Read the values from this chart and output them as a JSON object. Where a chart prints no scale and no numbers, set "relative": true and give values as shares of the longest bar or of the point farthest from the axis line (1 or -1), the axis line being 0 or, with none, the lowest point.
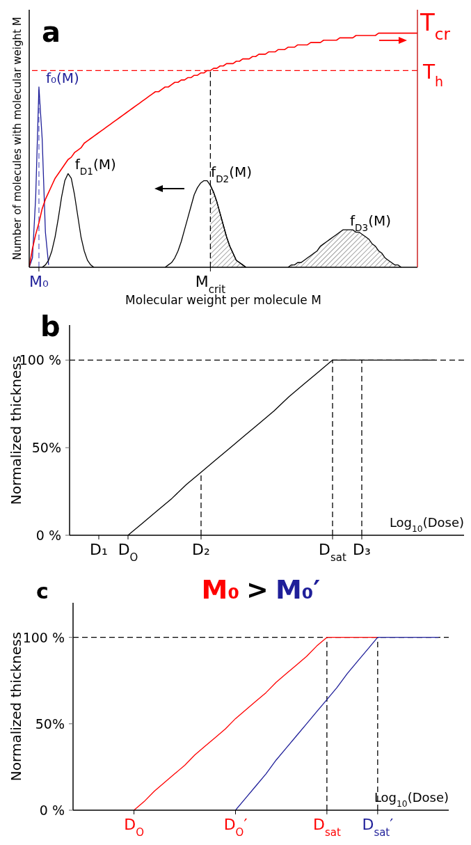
{
  "chart_data": [
    {
      "type": "line",
      "title": "a",
      "xlabel": "Molecular weight per molecule M",
      "ylabel": "Number of molecules with molecular weight M",
      "y2label": "T$_{cr}$",
      "relative": true,
      "legend": false,
      "categories": [
        null,
        null,
        null,
        "M₀",
        null,
        null,
        null,
        null,
        null,
        null,
        null,
        null,
        null,
        null,
        null,
        null,
        null,
        null,
        null,
        null,
        null,
        null,
        null,
        null,
        null,
        null,
        null,
        null,
        null,
        null,
        null,
        null,
        null,
        null,
        null,
        null,
        null,
        null,
        null,
        null,
        null,
        null,
        null,
        null,
        null,
        null,
        null,
        null,
        null,
        null,
        null,
        null,
        null,
        null,
        null,
        null,
        "M$_{crit}$",
        null,
        null,
        null,
        null,
        null,
        null,
        null,
        null,
        null,
        null,
        null,
        null,
        null,
        null,
        null,
        null,
        null,
        null,
        null,
        null,
        null,
        null,
        null,
        null,
        null,
        null,
        null,
        null,
        null,
        null,
        null,
        null,
        null,
        null,
        null,
        null,
        null,
        null,
        null,
        null,
        null,
        null,
        null,
        null,
        null,
        null,
        null,
        null,
        null,
        null,
        null,
        null,
        null,
        null,
        null,
        null,
        null,
        null,
        null,
        null,
        null,
        null,
        null,
        null
      ],
      "series": [
        {
          "name": "f₀(M)",
          "color": "#1f1f99",
          "values": [
            0,
            0.04,
            0.3,
            0.77,
            0.55,
            0.15,
            0.01,
            null,
            null,
            null,
            null,
            null,
            null,
            null,
            null,
            null,
            null,
            null,
            null,
            null,
            null,
            null,
            null,
            null,
            null,
            null,
            null,
            null,
            null,
            null,
            null,
            null,
            null,
            null,
            null,
            null,
            null,
            null,
            null,
            null,
            null,
            null,
            null,
            null,
            null,
            null,
            null,
            null,
            null,
            null,
            null,
            null,
            null,
            null,
            null,
            null,
            null,
            null,
            null,
            null,
            null,
            null,
            null,
            null,
            null,
            null,
            null,
            null,
            null,
            null,
            null,
            null,
            null,
            null,
            null,
            null,
            null,
            null,
            null,
            null,
            null,
            null,
            null,
            null,
            null,
            null,
            null,
            null,
            null,
            null,
            null,
            null,
            null,
            null,
            null,
            null,
            null,
            null,
            null,
            null,
            null,
            null,
            null,
            null,
            null,
            null,
            null,
            null,
            null,
            null,
            null,
            null,
            null,
            null,
            null,
            null,
            null,
            null,
            null,
            null,
            null
          ]
        },
        {
          "name": "f$_{D1}$(M)",
          "color": "#000000",
          "values": [
            null,
            null,
            null,
            null,
            0,
            0.01,
            0.03,
            0.07,
            0.13,
            0.21,
            0.3,
            0.37,
            0.4,
            0.38,
            0.31,
            0.22,
            0.13,
            0.07,
            0.03,
            0.01,
            0,
            null,
            null,
            null,
            null,
            null,
            null,
            null,
            null,
            null,
            null,
            null,
            null,
            null,
            null,
            null,
            null,
            null,
            null,
            null,
            null,
            null,
            null,
            null,
            null,
            null,
            null,
            null,
            null,
            null,
            null,
            null,
            null,
            null,
            null,
            null,
            null,
            null,
            null,
            null,
            null,
            null,
            null,
            null,
            null,
            null,
            null,
            null,
            null,
            null,
            null,
            null,
            null,
            null,
            null,
            null,
            null,
            null,
            null,
            null,
            null,
            null,
            null,
            null,
            null,
            null,
            null,
            null,
            null,
            null,
            null,
            null,
            null,
            null,
            null,
            null,
            null,
            null,
            null,
            null,
            null,
            null,
            null,
            null,
            null,
            null,
            null,
            null,
            null,
            null,
            null,
            null,
            null,
            null,
            null,
            null,
            null,
            null,
            null,
            null,
            null
          ]
        },
        {
          "name": "f$_{D2}$(M)",
          "color": "#000000",
          "values": [
            null,
            null,
            null,
            null,
            null,
            null,
            null,
            null,
            null,
            null,
            null,
            null,
            null,
            null,
            null,
            null,
            null,
            null,
            null,
            null,
            null,
            null,
            null,
            null,
            null,
            null,
            null,
            null,
            null,
            null,
            null,
            null,
            null,
            null,
            null,
            null,
            null,
            null,
            null,
            null,
            null,
            null,
            0,
            0.01,
            0.02,
            0.04,
            0.07,
            0.11,
            0.16,
            0.21,
            0.26,
            0.31,
            0.34,
            0.36,
            0.37,
            0.37,
            0.35,
            0.32,
            0.28,
            0.23,
            0.18,
            0.13,
            0.09,
            0.06,
            0.03,
            0.02,
            0.01,
            0,
            null,
            null,
            null,
            null,
            null,
            null,
            null,
            null,
            null,
            null,
            null,
            null,
            null,
            null,
            null,
            null,
            null,
            null,
            null,
            null,
            null,
            null,
            null,
            null,
            null,
            null,
            null,
            null,
            null,
            null,
            null,
            null,
            null,
            null,
            null,
            null,
            null,
            null,
            null,
            null,
            null,
            null,
            null,
            null,
            null,
            null,
            null,
            null,
            null,
            null,
            null,
            null,
            null
          ]
        },
        {
          "type": "area",
          "color": "#000000",
          "values": [
            null,
            null,
            null,
            null,
            null,
            null,
            null,
            null,
            null,
            null,
            null,
            null,
            null,
            null,
            null,
            null,
            null,
            null,
            null,
            null,
            null,
            null,
            null,
            null,
            null,
            null,
            null,
            null,
            null,
            null,
            null,
            null,
            null,
            null,
            null,
            null,
            null,
            null,
            null,
            null,
            null,
            null,
            null,
            null,
            null,
            null,
            null,
            null,
            null,
            null,
            null,
            null,
            null,
            null,
            null,
            null,
            0.35,
            0.32,
            0.28,
            0.23,
            0.18,
            0.13,
            0.09,
            0.06,
            0.03,
            0.02,
            0.01,
            0,
            null,
            null,
            null,
            null,
            null,
            null,
            null,
            null,
            null,
            null,
            null,
            null,
            null,
            null,
            null,
            null,
            null,
            null,
            null,
            null,
            null,
            null,
            null,
            null,
            null,
            null,
            null,
            null,
            null,
            null,
            null,
            null,
            null,
            null,
            null,
            null,
            null,
            null,
            null,
            null,
            null,
            null,
            null,
            null,
            null,
            null,
            null,
            null,
            null,
            null,
            null,
            null,
            null
          ]
        },
        {
          "name": "f$_{D3}$(M)",
          "type": "area",
          "color": "#000000",
          "values": [
            null,
            null,
            null,
            null,
            null,
            null,
            null,
            null,
            null,
            null,
            null,
            null,
            null,
            null,
            null,
            null,
            null,
            null,
            null,
            null,
            null,
            null,
            null,
            null,
            null,
            null,
            null,
            null,
            null,
            null,
            null,
            null,
            null,
            null,
            null,
            null,
            null,
            null,
            null,
            null,
            null,
            null,
            null,
            null,
            null,
            null,
            null,
            null,
            null,
            null,
            null,
            null,
            null,
            null,
            null,
            null,
            null,
            null,
            null,
            null,
            null,
            null,
            null,
            null,
            null,
            null,
            null,
            null,
            null,
            null,
            null,
            null,
            null,
            null,
            null,
            null,
            null,
            null,
            null,
            null,
            0,
            0.01,
            0.01,
            0.02,
            0.02,
            0.03,
            0.04,
            0.05,
            0.06,
            0.07,
            0.09,
            0.1,
            0.11,
            0.12,
            0.13,
            0.14,
            0.15,
            0.16,
            0.16,
            0.16,
            0.16,
            0.15,
            0.15,
            0.14,
            0.13,
            0.12,
            0.1,
            0.09,
            0.07,
            0.06,
            0.04,
            0.03,
            0.02,
            0.01,
            0.01,
            0,
            null,
            null,
            null,
            null,
            null
          ]
        },
        {
          "axis": "y2",
          "color": "#ff0000",
          "values": [
            0,
            0.08,
            0.14,
            0.19,
            0.25,
            0.29,
            0.32,
            0.35,
            0.38,
            0.4,
            0.42,
            0.44,
            0.46,
            0.47,
            0.49,
            0.5,
            0.51,
            0.53,
            0.54,
            0.55,
            0.56,
            0.57,
            0.58,
            0.59,
            0.6,
            0.61,
            0.62,
            0.63,
            0.64,
            0.65,
            0.66,
            0.67,
            0.68,
            0.69,
            0.7,
            0.71,
            0.72,
            0.73,
            0.74,
            0.75,
            0.75,
            0.76,
            0.77,
            0.77,
            0.78,
            0.79,
            0.79,
            0.8,
            0.8,
            0.81,
            0.81,
            0.82,
            0.82,
            0.83,
            0.83,
            0.84,
            0.84,
            0.85,
            0.85,
            0.86,
            0.86,
            0.87,
            0.87,
            0.87,
            0.88,
            0.88,
            0.89,
            0.89,
            0.89,
            0.9,
            0.9,
            0.91,
            0.91,
            0.91,
            0.92,
            0.92,
            0.92,
            0.93,
            0.93,
            0.93,
            0.94,
            0.94,
            0.94,
            0.95,
            0.95,
            0.95,
            0.95,
            0.96,
            0.96,
            0.96,
            0.96,
            0.97,
            0.97,
            0.97,
            0.97,
            0.97,
            0.98,
            0.98,
            0.98,
            0.98,
            0.98,
            0.99,
            0.99,
            0.99,
            0.99,
            0.99,
            0.99,
            0.99,
            1,
            1,
            1,
            1,
            1,
            1,
            1,
            1,
            1,
            1,
            1,
            1,
            1
          ]
        }
      ],
      "ref_lines": [
        {
          "axis": "x",
          "value": "M₀",
          "color": "#6666cc",
          "line_style": "dashed"
        },
        {
          "axis": "x",
          "value": "M$_{crit}$",
          "color": "#000000",
          "line_style": "dashed"
        },
        {
          "axis": "y2",
          "value": 0.84,
          "label": "T$_{h}$",
          "color": "#ff0000",
          "line_style": "dashed"
        }
      ]
    },
    {
      "type": "line",
      "title": "b",
      "xlabel": "Log$_{10}$(Dose)",
      "ylabel": "Normalized thickness",
      "ylim": [
        0,
        120
      ],
      "yticks": [
        {
          "value": 0,
          "label": "0 %"
        },
        {
          "value": 50,
          "label": "50%"
        },
        {
          "value": 100,
          "label": "100 %"
        }
      ],
      "legend": false,
      "categories": [
        null,
        null,
        "D₁",
        null,
        "D$_{O}$",
        null,
        null,
        null,
        null,
        "D₂",
        null,
        null,
        null,
        null,
        null,
        null,
        null,
        null,
        "D$_{sat}$",
        null,
        "D₃",
        null,
        null,
        null,
        null,
        null,
        null
      ],
      "series": [
        {
          "color": "#000000",
          "values": [
            null,
            null,
            null,
            null,
            0,
            7,
            14,
            21,
            29,
            36,
            43,
            50,
            57,
            64,
            71,
            79,
            86,
            93,
            100,
            100,
            100,
            100,
            100,
            100,
            100,
            100,
            null
          ]
        }
      ],
      "ref_lines": [
        {
          "axis": "y",
          "value": 100,
          "color": "#000000",
          "line_style": "dashed"
        },
        {
          "axis": "x",
          "value": "D₂",
          "color": "#000000",
          "line_style": "dashed"
        },
        {
          "axis": "x",
          "value": "D$_{sat}$",
          "color": "#000000",
          "line_style": "dashed"
        },
        {
          "axis": "x",
          "value": "D₃",
          "color": "#000000",
          "line_style": "dashed"
        }
      ]
    },
    {
      "type": "line",
      "title": "c",
      "xlabel": "Log$_{10}$(Dose)",
      "ylabel": "Normalized thickness",
      "ylim": [
        0,
        120
      ],
      "yticks": [
        {
          "value": 0,
          "label": "0 %"
        },
        {
          "value": 50,
          "label": "50%"
        },
        {
          "value": 100,
          "label": "100 %"
        }
      ],
      "legend": "top",
      "annotations": [
        ">"
      ],
      "categories": [
        null,
        null,
        null,
        null,
        null,
        null,
        "D$_{O}$",
        null,
        null,
        null,
        null,
        null,
        null,
        null,
        null,
        null,
        "D$_{O}$′",
        null,
        null,
        null,
        null,
        null,
        null,
        null,
        null,
        "D$_{sat}$",
        null,
        null,
        null,
        null,
        "D$_{sat}$′",
        null,
        null,
        null,
        null,
        null,
        null
      ],
      "series": [
        {
          "name": "M₀",
          "color": "#ff0000",
          "values": [
            null,
            null,
            null,
            null,
            null,
            null,
            0,
            5,
            11,
            16,
            21,
            26,
            32,
            37,
            42,
            47,
            53,
            58,
            63,
            68,
            74,
            79,
            84,
            89,
            95,
            100,
            100,
            100,
            100,
            100,
            100,
            null,
            null,
            null,
            null,
            null,
            null
          ]
        },
        {
          "name": "M₀′",
          "color": "#1f1f99",
          "values": [
            null,
            null,
            null,
            null,
            null,
            null,
            null,
            null,
            null,
            null,
            null,
            null,
            null,
            null,
            null,
            null,
            0,
            7,
            14,
            21,
            29,
            36,
            43,
            50,
            57,
            64,
            71,
            79,
            86,
            93,
            100,
            100,
            100,
            100,
            100,
            100,
            100
          ]
        }
      ],
      "ref_lines": [
        {
          "axis": "y",
          "value": 100,
          "color": "#000000",
          "line_style": "dashed"
        },
        {
          "axis": "x",
          "value": "D$_{sat}$",
          "color": "#000000",
          "line_style": "dashed"
        },
        {
          "axis": "x",
          "value": "D$_{sat}$′",
          "color": "#000000",
          "line_style": "dashed"
        }
      ]
    }
  ]
}
